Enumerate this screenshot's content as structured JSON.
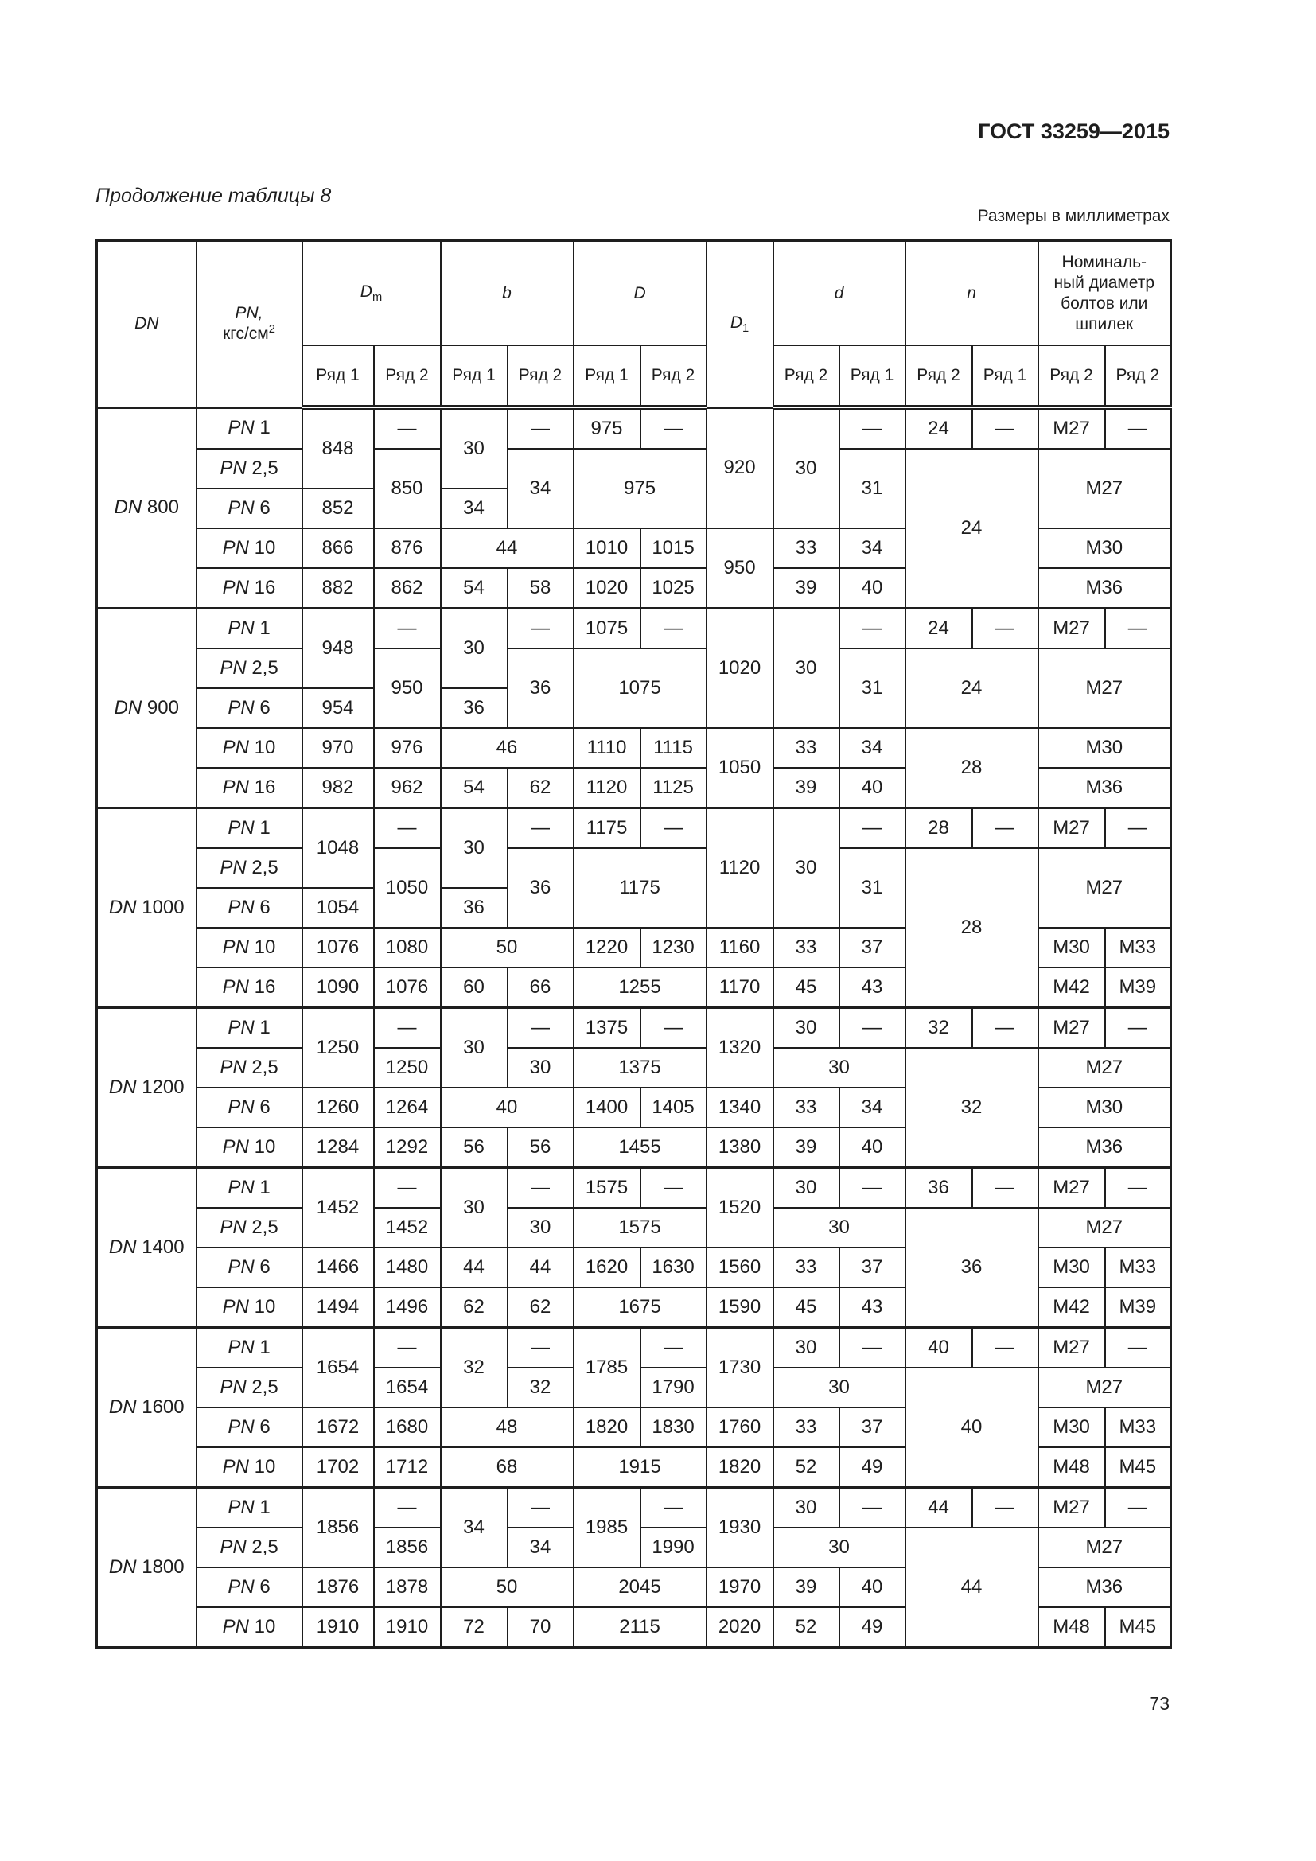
{
  "document_id": "ГОСТ 33259—2015",
  "continuation": "Продолжение таблицы 8",
  "units_note": "Размеры в миллиметрах",
  "page_number": "73",
  "header": {
    "dn": "DN",
    "pn": "PN,",
    "pn_unit": "кгс/см",
    "pn_unit_sup": "2",
    "dm": "D",
    "dm_sub": "m",
    "b": "b",
    "D": "D",
    "d1": "D",
    "d1_sub": "1",
    "d": "d",
    "n": "n",
    "bolt": "Номиналь-ный диаметр болтов или шпилек",
    "row1": "Ряд 1",
    "row2": "Ряд 2"
  },
  "rows": [
    [
      {
        "v": "DN 800",
        "rs": 5
      },
      {
        "v": "PN 1"
      },
      {
        "v": "848",
        "rs": 2
      },
      {
        "v": "—"
      },
      {
        "v": "30",
        "rs": 2
      },
      {
        "v": "—"
      },
      {
        "v": "975"
      },
      {
        "v": "—"
      },
      {
        "v": "920",
        "rs": 3
      },
      {
        "v": "30",
        "rs": 3
      },
      {
        "v": "—"
      },
      {
        "v": "24"
      },
      {
        "v": "—"
      },
      {
        "v": "M27"
      },
      {
        "v": "—"
      }
    ],
    [
      {
        "v": "PN 2,5"
      },
      {
        "v": "850",
        "rs": 2
      },
      {
        "v": "34",
        "rs": 2
      },
      {
        "v": "975",
        "cs": 2,
        "rs": 2
      },
      {
        "v": "31",
        "rs": 2
      },
      {
        "v": "24",
        "cs": 2,
        "rs": 4
      },
      {
        "v": "M27",
        "cs": 2,
        "rs": 2
      }
    ],
    [
      {
        "v": "PN 6"
      },
      {
        "v": "852"
      },
      {
        "v": "34"
      }
    ],
    [
      {
        "v": "PN 10"
      },
      {
        "v": "866"
      },
      {
        "v": "876"
      },
      {
        "v": "44",
        "cs": 2
      },
      {
        "v": "1010"
      },
      {
        "v": "1015"
      },
      {
        "v": "950",
        "rs": 2
      },
      {
        "v": "33"
      },
      {
        "v": "34"
      },
      {
        "v": "M30",
        "cs": 2
      }
    ],
    [
      {
        "v": "PN 16"
      },
      {
        "v": "882"
      },
      {
        "v": "862"
      },
      {
        "v": "54"
      },
      {
        "v": "58"
      },
      {
        "v": "1020"
      },
      {
        "v": "1025"
      },
      {
        "v": "39"
      },
      {
        "v": "40"
      },
      {
        "v": "M36",
        "cs": 2
      }
    ],
    [
      {
        "v": "DN 900",
        "rs": 5
      },
      {
        "v": "PN 1"
      },
      {
        "v": "948",
        "rs": 2
      },
      {
        "v": "—"
      },
      {
        "v": "30",
        "rs": 2
      },
      {
        "v": "—"
      },
      {
        "v": "1075"
      },
      {
        "v": "—"
      },
      {
        "v": "1020",
        "rs": 3
      },
      {
        "v": "30",
        "rs": 3
      },
      {
        "v": "—"
      },
      {
        "v": "24"
      },
      {
        "v": "—"
      },
      {
        "v": "M27"
      },
      {
        "v": "—"
      }
    ],
    [
      {
        "v": "PN 2,5"
      },
      {
        "v": "950",
        "rs": 2
      },
      {
        "v": "36",
        "rs": 2
      },
      {
        "v": "1075",
        "cs": 2,
        "rs": 2
      },
      {
        "v": "31",
        "rs": 2
      },
      {
        "v": "24",
        "cs": 2,
        "rs": 2
      },
      {
        "v": "M27",
        "cs": 2,
        "rs": 2
      }
    ],
    [
      {
        "v": "PN 6"
      },
      {
        "v": "954"
      },
      {
        "v": "36"
      }
    ],
    [
      {
        "v": "PN 10"
      },
      {
        "v": "970"
      },
      {
        "v": "976"
      },
      {
        "v": "46",
        "cs": 2
      },
      {
        "v": "1110"
      },
      {
        "v": "1115"
      },
      {
        "v": "1050",
        "rs": 2
      },
      {
        "v": "33"
      },
      {
        "v": "34"
      },
      {
        "v": "28",
        "cs": 2,
        "rs": 2
      },
      {
        "v": "M30",
        "cs": 2
      }
    ],
    [
      {
        "v": "PN 16"
      },
      {
        "v": "982"
      },
      {
        "v": "962"
      },
      {
        "v": "54"
      },
      {
        "v": "62"
      },
      {
        "v": "1120"
      },
      {
        "v": "1125"
      },
      {
        "v": "39"
      },
      {
        "v": "40"
      },
      {
        "v": "M36",
        "cs": 2
      }
    ],
    [
      {
        "v": "DN 1000",
        "rs": 5
      },
      {
        "v": "PN 1"
      },
      {
        "v": "1048",
        "rs": 2
      },
      {
        "v": "—"
      },
      {
        "v": "30",
        "rs": 2
      },
      {
        "v": "—"
      },
      {
        "v": "1175"
      },
      {
        "v": "—"
      },
      {
        "v": "1120",
        "rs": 3
      },
      {
        "v": "30",
        "rs": 3
      },
      {
        "v": "—"
      },
      {
        "v": "28"
      },
      {
        "v": "—"
      },
      {
        "v": "M27"
      },
      {
        "v": "—"
      }
    ],
    [
      {
        "v": "PN 2,5"
      },
      {
        "v": "1050",
        "rs": 2
      },
      {
        "v": "36",
        "rs": 2
      },
      {
        "v": "1175",
        "cs": 2,
        "rs": 2
      },
      {
        "v": "31",
        "rs": 2
      },
      {
        "v": "28",
        "cs": 2,
        "rs": 4
      },
      {
        "v": "M27",
        "cs": 2,
        "rs": 2
      }
    ],
    [
      {
        "v": "PN 6"
      },
      {
        "v": "1054"
      },
      {
        "v": "36"
      }
    ],
    [
      {
        "v": "PN 10"
      },
      {
        "v": "1076"
      },
      {
        "v": "1080"
      },
      {
        "v": "50",
        "cs": 2
      },
      {
        "v": "1220"
      },
      {
        "v": "1230"
      },
      {
        "v": "1160"
      },
      {
        "v": "33"
      },
      {
        "v": "37"
      },
      {
        "v": "M30"
      },
      {
        "v": "M33"
      }
    ],
    [
      {
        "v": "PN 16"
      },
      {
        "v": "1090"
      },
      {
        "v": "1076"
      },
      {
        "v": "60"
      },
      {
        "v": "66"
      },
      {
        "v": "1255",
        "cs": 2
      },
      {
        "v": "1170"
      },
      {
        "v": "45"
      },
      {
        "v": "43"
      },
      {
        "v": "M42"
      },
      {
        "v": "M39"
      }
    ],
    [
      {
        "v": "DN 1200",
        "rs": 4
      },
      {
        "v": "PN 1"
      },
      {
        "v": "1250",
        "rs": 2
      },
      {
        "v": "—"
      },
      {
        "v": "30",
        "rs": 2
      },
      {
        "v": "—"
      },
      {
        "v": "1375"
      },
      {
        "v": "—"
      },
      {
        "v": "1320",
        "rs": 2
      },
      {
        "v": "30"
      },
      {
        "v": "—"
      },
      {
        "v": "32"
      },
      {
        "v": "—"
      },
      {
        "v": "M27"
      },
      {
        "v": "—"
      }
    ],
    [
      {
        "v": "PN 2,5"
      },
      {
        "v": "1250"
      },
      {
        "v": "30"
      },
      {
        "v": "1375",
        "cs": 2
      },
      {
        "v": "30",
        "cs": 2
      },
      {
        "v": "32",
        "cs": 2,
        "rs": 3
      },
      {
        "v": "M27",
        "cs": 2
      }
    ],
    [
      {
        "v": "PN 6"
      },
      {
        "v": "1260"
      },
      {
        "v": "1264"
      },
      {
        "v": "40",
        "cs": 2
      },
      {
        "v": "1400"
      },
      {
        "v": "1405"
      },
      {
        "v": "1340"
      },
      {
        "v": "33"
      },
      {
        "v": "34"
      },
      {
        "v": "M30",
        "cs": 2
      }
    ],
    [
      {
        "v": "PN 10"
      },
      {
        "v": "1284"
      },
      {
        "v": "1292"
      },
      {
        "v": "56"
      },
      {
        "v": "56"
      },
      {
        "v": "1455",
        "cs": 2
      },
      {
        "v": "1380"
      },
      {
        "v": "39"
      },
      {
        "v": "40"
      },
      {
        "v": "M36",
        "cs": 2
      }
    ],
    [
      {
        "v": "DN 1400",
        "rs": 4
      },
      {
        "v": "PN 1"
      },
      {
        "v": "1452",
        "rs": 2
      },
      {
        "v": "—"
      },
      {
        "v": "30",
        "rs": 2
      },
      {
        "v": "—"
      },
      {
        "v": "1575"
      },
      {
        "v": "—"
      },
      {
        "v": "1520",
        "rs": 2
      },
      {
        "v": "30"
      },
      {
        "v": "—"
      },
      {
        "v": "36"
      },
      {
        "v": "—"
      },
      {
        "v": "M27"
      },
      {
        "v": "—"
      }
    ],
    [
      {
        "v": "PN 2,5"
      },
      {
        "v": "1452"
      },
      {
        "v": "30"
      },
      {
        "v": "1575",
        "cs": 2
      },
      {
        "v": "30",
        "cs": 2
      },
      {
        "v": "36",
        "cs": 2,
        "rs": 3
      },
      {
        "v": "M27",
        "cs": 2
      }
    ],
    [
      {
        "v": "PN 6"
      },
      {
        "v": "1466"
      },
      {
        "v": "1480"
      },
      {
        "v": "44"
      },
      {
        "v": "44"
      },
      {
        "v": "1620"
      },
      {
        "v": "1630"
      },
      {
        "v": "1560"
      },
      {
        "v": "33"
      },
      {
        "v": "37"
      },
      {
        "v": "M30"
      },
      {
        "v": "M33"
      }
    ],
    [
      {
        "v": "PN 10"
      },
      {
        "v": "1494"
      },
      {
        "v": "1496"
      },
      {
        "v": "62"
      },
      {
        "v": "62"
      },
      {
        "v": "1675",
        "cs": 2
      },
      {
        "v": "1590"
      },
      {
        "v": "45"
      },
      {
        "v": "43"
      },
      {
        "v": "M42"
      },
      {
        "v": "M39"
      }
    ],
    [
      {
        "v": "DN 1600",
        "rs": 4
      },
      {
        "v": "PN 1"
      },
      {
        "v": "1654",
        "rs": 2
      },
      {
        "v": "—"
      },
      {
        "v": "32",
        "rs": 2
      },
      {
        "v": "—"
      },
      {
        "v": "1785",
        "rs": 2
      },
      {
        "v": "—"
      },
      {
        "v": "1730",
        "rs": 2
      },
      {
        "v": "30"
      },
      {
        "v": "—"
      },
      {
        "v": "40"
      },
      {
        "v": "—"
      },
      {
        "v": "M27"
      },
      {
        "v": "—"
      }
    ],
    [
      {
        "v": "PN 2,5"
      },
      {
        "v": "1654"
      },
      {
        "v": "32"
      },
      {
        "v": "1790"
      },
      {
        "v": "30",
        "cs": 2
      },
      {
        "v": "40",
        "cs": 2,
        "rs": 3
      },
      {
        "v": "M27",
        "cs": 2
      }
    ],
    [
      {
        "v": "PN 6"
      },
      {
        "v": "1672"
      },
      {
        "v": "1680"
      },
      {
        "v": "48",
        "cs": 2
      },
      {
        "v": "1820"
      },
      {
        "v": "1830"
      },
      {
        "v": "1760"
      },
      {
        "v": "33"
      },
      {
        "v": "37"
      },
      {
        "v": "M30"
      },
      {
        "v": "M33"
      }
    ],
    [
      {
        "v": "PN 10"
      },
      {
        "v": "1702"
      },
      {
        "v": "1712"
      },
      {
        "v": "68",
        "cs": 2
      },
      {
        "v": "1915",
        "cs": 2
      },
      {
        "v": "1820"
      },
      {
        "v": "52"
      },
      {
        "v": "49"
      },
      {
        "v": "M48"
      },
      {
        "v": "M45"
      }
    ],
    [
      {
        "v": "DN 1800",
        "rs": 4
      },
      {
        "v": "PN 1"
      },
      {
        "v": "1856",
        "rs": 2
      },
      {
        "v": "—"
      },
      {
        "v": "34",
        "rs": 2
      },
      {
        "v": "—"
      },
      {
        "v": "1985",
        "rs": 2
      },
      {
        "v": "—"
      },
      {
        "v": "1930",
        "rs": 2
      },
      {
        "v": "30"
      },
      {
        "v": "—"
      },
      {
        "v": "44"
      },
      {
        "v": "—"
      },
      {
        "v": "M27"
      },
      {
        "v": "—"
      }
    ],
    [
      {
        "v": "PN 2,5"
      },
      {
        "v": "1856"
      },
      {
        "v": "34"
      },
      {
        "v": "1990"
      },
      {
        "v": "30",
        "cs": 2
      },
      {
        "v": "44",
        "cs": 2,
        "rs": 3
      },
      {
        "v": "M27",
        "cs": 2
      }
    ],
    [
      {
        "v": "PN 6"
      },
      {
        "v": "1876"
      },
      {
        "v": "1878"
      },
      {
        "v": "50",
        "cs": 2
      },
      {
        "v": "2045",
        "cs": 2
      },
      {
        "v": "1970"
      },
      {
        "v": "39"
      },
      {
        "v": "40"
      },
      {
        "v": "M36",
        "cs": 2
      }
    ],
    [
      {
        "v": "PN 10"
      },
      {
        "v": "1910"
      },
      {
        "v": "1910"
      },
      {
        "v": "72"
      },
      {
        "v": "70"
      },
      {
        "v": "2115",
        "cs": 2
      },
      {
        "v": "2020"
      },
      {
        "v": "52"
      },
      {
        "v": "49"
      },
      {
        "v": "M48"
      },
      {
        "v": "M45"
      }
    ]
  ]
}
